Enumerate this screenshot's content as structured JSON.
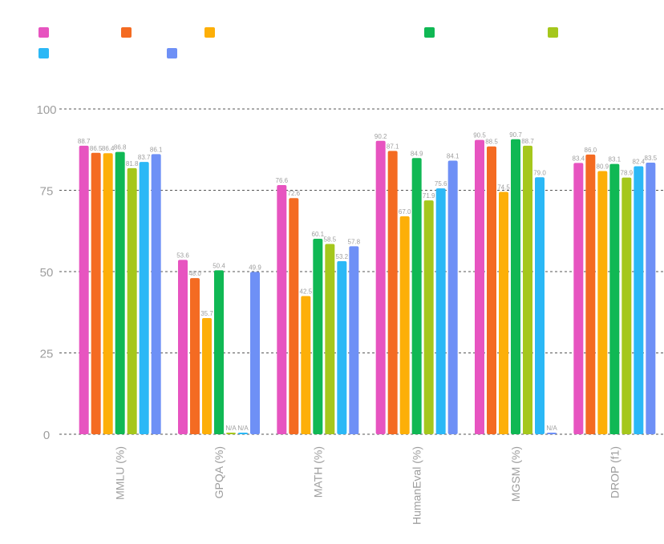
{
  "chart_data": {
    "type": "bar",
    "categories": [
      "MMLU (%)",
      "GPQA (%)",
      "MATH (%)",
      "HumanEval (%)",
      "MGSM (%)",
      "DROP (f1)"
    ],
    "series": [
      {
        "color": "#e754c0",
        "values": [
          88.7,
          53.6,
          76.6,
          90.2,
          90.5,
          83.4
        ],
        "labels": [
          "88.7",
          "53.6",
          "76.6",
          "90.2",
          "90.5",
          "83.4"
        ]
      },
      {
        "color": "#f46b22",
        "values": [
          86.5,
          48.0,
          72.6,
          87.1,
          88.5,
          86.0
        ],
        "labels": [
          "86.5",
          "48.0",
          "72.6",
          "87.1",
          "88.5",
          "86.0"
        ]
      },
      {
        "color": "#fdaf08",
        "values": [
          86.4,
          35.7,
          42.5,
          67.0,
          74.5,
          80.9
        ],
        "labels": [
          "86.4",
          "35.7",
          "42.5",
          "67.0",
          "74.5",
          "80.9"
        ]
      },
      {
        "color": "#10b854",
        "values": [
          86.8,
          50.4,
          60.1,
          84.9,
          90.7,
          83.1
        ],
        "labels": [
          "86.8",
          "50.4",
          "60.1",
          "84.9",
          "90.7",
          "83.1"
        ]
      },
      {
        "color": "#a5c71c",
        "values": [
          81.8,
          0,
          58.5,
          71.9,
          88.7,
          78.9
        ],
        "labels": [
          "81.8",
          "N/A",
          "58.5",
          "71.9",
          "88.7",
          "78.9"
        ]
      },
      {
        "color": "#2bb8f6",
        "values": [
          83.7,
          0,
          53.2,
          75.6,
          79.0,
          82.4
        ],
        "labels": [
          "83.7",
          "N/A",
          "53.2",
          "75.6",
          "79.0",
          "82.4"
        ]
      },
      {
        "color": "#6e90f6",
        "values": [
          86.1,
          49.9,
          57.8,
          84.1,
          0,
          83.5
        ],
        "labels": [
          "86.1",
          "49.9",
          "57.8",
          "84.1",
          "N/A",
          "83.5"
        ]
      }
    ],
    "ylim": [
      0,
      100
    ],
    "yticks": [
      0,
      25,
      50,
      75,
      100
    ],
    "grid": true,
    "legend": "top-left",
    "colors": {
      "tick": "#9e9e9e",
      "grid": "#555555",
      "value_label": "#9e9e9e"
    }
  }
}
